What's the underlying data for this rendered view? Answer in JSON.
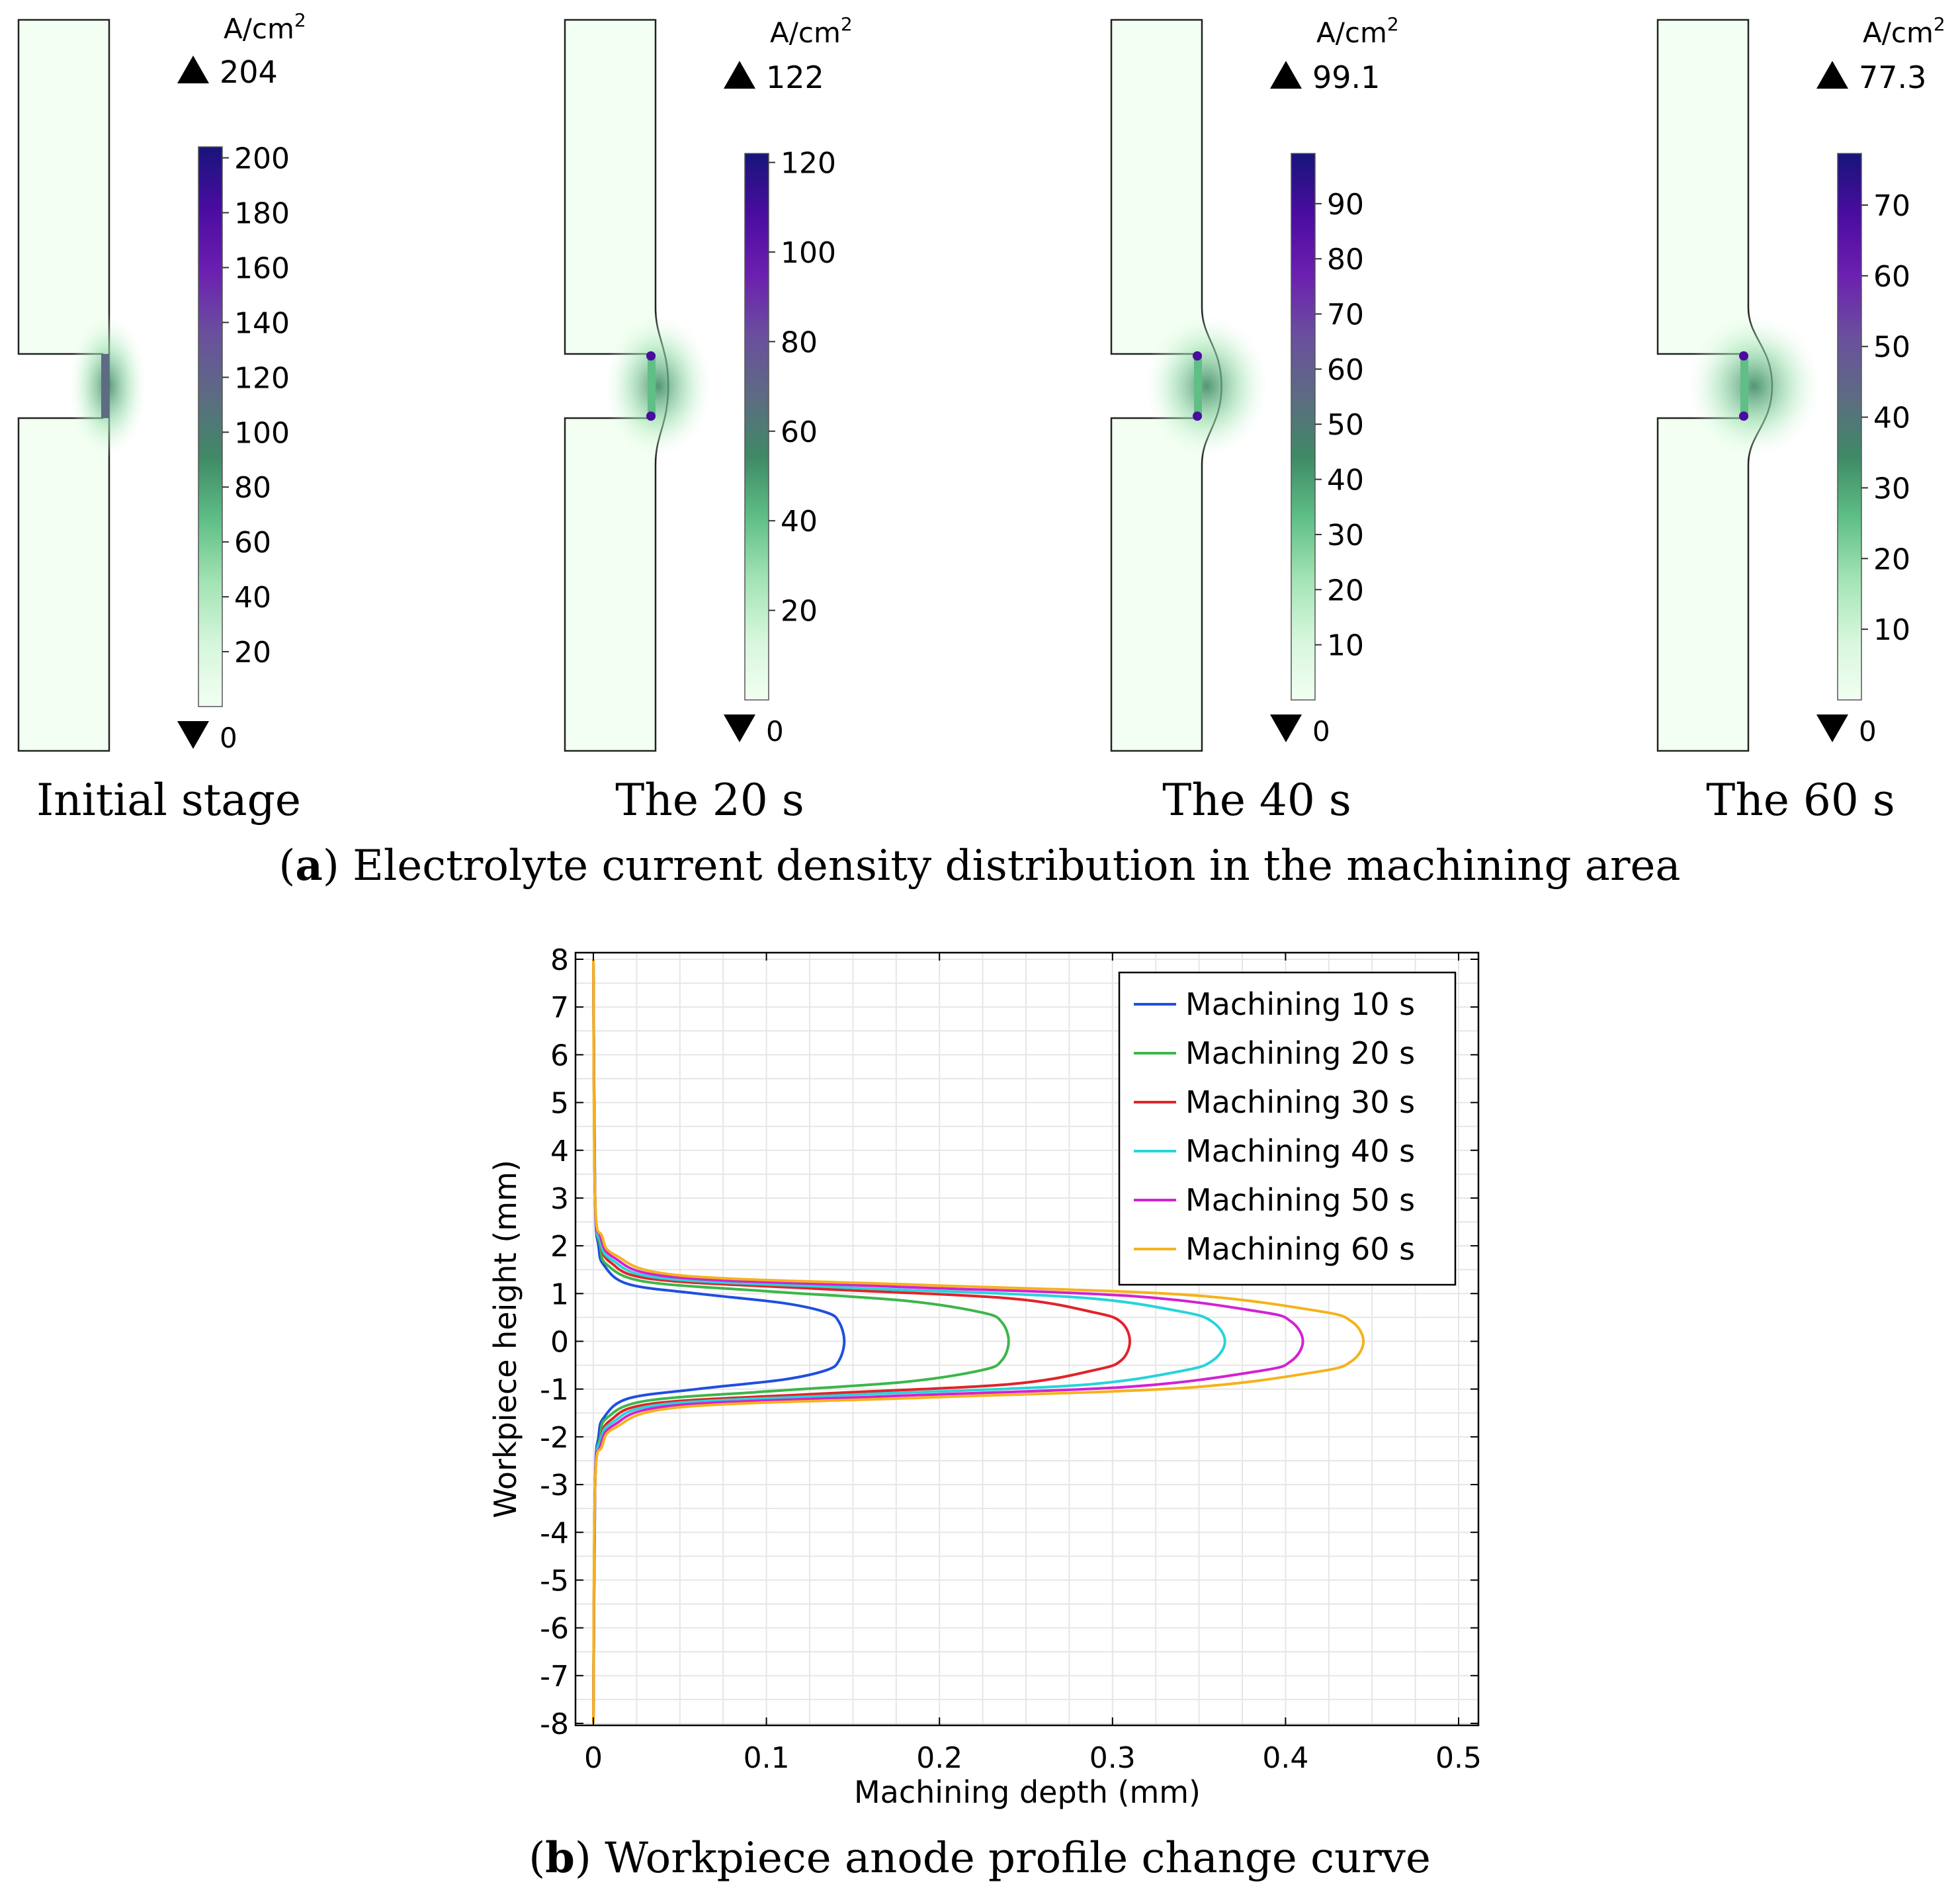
{
  "panel_a": {
    "caption_letter": "a",
    "caption_text": "Electrolyte current density distribution in the machining area",
    "unit": "A/cm",
    "unit_sup": "2",
    "colormap": [
      "#f2fff2",
      "#d6f6dc",
      "#a3e3b4",
      "#5fbf86",
      "#3f8a66",
      "#5d6b83",
      "#6a4f9e",
      "#6c1fb0",
      "#4a0ca0",
      "#17157a"
    ],
    "stages": [
      {
        "label": "Initial stage",
        "max_label": "204",
        "min_label": "0",
        "max": 204,
        "ticks": [
          "20",
          "40",
          "60",
          "80",
          "100",
          "120",
          "140",
          "160",
          "180",
          "200"
        ],
        "tick_values": [
          20,
          40,
          60,
          80,
          100,
          120,
          140,
          160,
          180,
          200
        ],
        "bulge": 0.0
      },
      {
        "label": "The 20 s",
        "max_label": "122",
        "min_label": "0",
        "max": 122,
        "ticks": [
          "20",
          "40",
          "60",
          "80",
          "100",
          "120"
        ],
        "tick_values": [
          20,
          40,
          60,
          80,
          100,
          120
        ],
        "bulge": 0.24
      },
      {
        "label": "The 40 s",
        "max_label": "99.1",
        "min_label": "0",
        "max": 99.1,
        "ticks": [
          "10",
          "20",
          "30",
          "40",
          "50",
          "60",
          "70",
          "80",
          "90"
        ],
        "tick_values": [
          10,
          20,
          30,
          40,
          50,
          60,
          70,
          80,
          90
        ],
        "bulge": 0.37
      },
      {
        "label": "The 60 s",
        "max_label": "77.3",
        "min_label": "0",
        "max": 77.3,
        "ticks": [
          "10",
          "20",
          "30",
          "40",
          "50",
          "60",
          "70"
        ],
        "tick_values": [
          10,
          20,
          30,
          40,
          50,
          60,
          70
        ],
        "bulge": 0.45
      }
    ]
  },
  "panel_b": {
    "caption_letter": "b",
    "caption_text": "Workpiece anode profile change curve"
  },
  "chart_data": {
    "type": "line",
    "xlabel": "Machining depth (mm)",
    "ylabel": "Workpiece height (mm)",
    "xlim": [
      0,
      0.5
    ],
    "ylim": [
      -8,
      8
    ],
    "xticks": [
      "0",
      "0.1",
      "0.2",
      "0.3",
      "0.4",
      "0.5"
    ],
    "xtick_values": [
      0,
      0.1,
      0.2,
      0.3,
      0.4,
      0.5
    ],
    "yticks": [
      "8",
      "7",
      "6",
      "5",
      "4",
      "3",
      "2",
      "1",
      "0",
      "-1",
      "-2",
      "-3",
      "-4",
      "-5",
      "-6",
      "-7",
      "-8"
    ],
    "ytick_values": [
      8,
      7,
      6,
      5,
      4,
      3,
      2,
      1,
      0,
      -1,
      -2,
      -3,
      -4,
      -5,
      -6,
      -7,
      -8
    ],
    "grid": true,
    "legend_position": "top-right",
    "series": [
      {
        "name": "Machining 10 s",
        "color": "#1f4fe0",
        "peak_depth": 0.145,
        "x": [
          0.0,
          0.001,
          0.003,
          0.006,
          0.02,
          0.06,
          0.11,
          0.135,
          0.142,
          0.145,
          0.142,
          0.135,
          0.11,
          0.06,
          0.02,
          0.006,
          0.003,
          0.001,
          0.0
        ],
        "y": [
          8,
          3,
          2,
          1.6,
          1.2,
          1.0,
          0.8,
          0.6,
          0.4,
          0,
          -0.4,
          -0.6,
          -0.8,
          -1.0,
          -1.2,
          -1.6,
          -2,
          -3,
          -8
        ]
      },
      {
        "name": "Machining 20 s",
        "color": "#3cb64a",
        "peak_depth": 0.24,
        "x": [
          0.0,
          0.001,
          0.004,
          0.008,
          0.03,
          0.1,
          0.18,
          0.225,
          0.236,
          0.24,
          0.236,
          0.225,
          0.18,
          0.1,
          0.03,
          0.008,
          0.004,
          0.001,
          0.0
        ],
        "y": [
          8,
          3,
          2,
          1.6,
          1.25,
          1.05,
          0.85,
          0.6,
          0.4,
          0,
          -0.4,
          -0.6,
          -0.85,
          -1.05,
          -1.25,
          -1.6,
          -2,
          -3,
          -8
        ]
      },
      {
        "name": "Machining 30 s",
        "color": "#e0242a",
        "peak_depth": 0.31,
        "x": [
          0.0,
          0.001,
          0.004,
          0.01,
          0.035,
          0.13,
          0.24,
          0.29,
          0.305,
          0.31,
          0.305,
          0.29,
          0.24,
          0.13,
          0.035,
          0.01,
          0.004,
          0.001,
          0.0
        ],
        "y": [
          8,
          3,
          2.1,
          1.65,
          1.3,
          1.1,
          0.9,
          0.6,
          0.4,
          0,
          -0.4,
          -0.6,
          -0.9,
          -1.1,
          -1.3,
          -1.65,
          -2.1,
          -3,
          -8
        ]
      },
      {
        "name": "Machining 40 s",
        "color": "#27d4d8",
        "peak_depth": 0.365,
        "x": [
          0.0,
          0.001,
          0.004,
          0.011,
          0.04,
          0.15,
          0.28,
          0.34,
          0.358,
          0.365,
          0.358,
          0.34,
          0.28,
          0.15,
          0.04,
          0.011,
          0.004,
          0.001,
          0.0
        ],
        "y": [
          8,
          3,
          2.1,
          1.7,
          1.32,
          1.12,
          0.92,
          0.62,
          0.4,
          0,
          -0.4,
          -0.62,
          -0.92,
          -1.12,
          -1.32,
          -1.7,
          -2.1,
          -3,
          -8
        ]
      },
      {
        "name": "Machining 50 s",
        "color": "#d222d2",
        "peak_depth": 0.41,
        "x": [
          0.0,
          0.001,
          0.004,
          0.012,
          0.045,
          0.17,
          0.31,
          0.385,
          0.403,
          0.41,
          0.403,
          0.385,
          0.31,
          0.17,
          0.045,
          0.012,
          0.004,
          0.001,
          0.0
        ],
        "y": [
          8,
          3,
          2.2,
          1.75,
          1.35,
          1.15,
          0.95,
          0.62,
          0.42,
          0,
          -0.42,
          -0.62,
          -0.95,
          -1.15,
          -1.35,
          -1.75,
          -2.2,
          -3,
          -8
        ]
      },
      {
        "name": "Machining 60 s",
        "color": "#f5b21b",
        "peak_depth": 0.445,
        "x": [
          0.0,
          0.001,
          0.005,
          0.013,
          0.05,
          0.19,
          0.34,
          0.418,
          0.438,
          0.445,
          0.438,
          0.418,
          0.34,
          0.19,
          0.05,
          0.013,
          0.005,
          0.001,
          0.0
        ],
        "y": [
          8,
          3,
          2.2,
          1.8,
          1.38,
          1.18,
          0.98,
          0.64,
          0.42,
          0,
          -0.42,
          -0.64,
          -0.98,
          -1.18,
          -1.38,
          -1.8,
          -2.2,
          -3,
          -8
        ]
      }
    ]
  }
}
